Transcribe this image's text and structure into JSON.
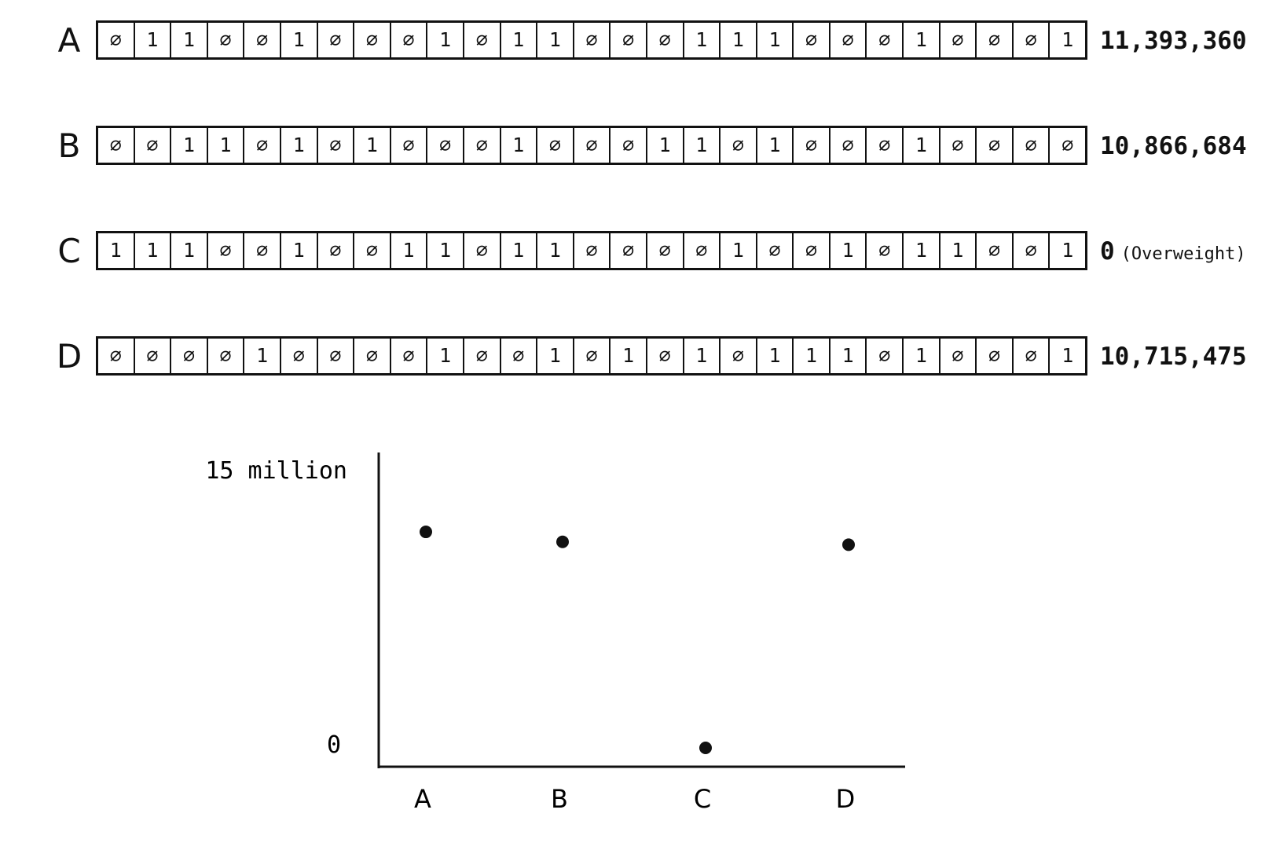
{
  "rows": [
    {
      "label": "A",
      "bits": "011001000101100011100010001",
      "value": "11,393,360",
      "note": ""
    },
    {
      "label": "B",
      "bits": "001101010001000110100010000",
      "value": "10,866,684",
      "note": ""
    },
    {
      "label": "C",
      "bits": "111001001101100001001011001",
      "value": "0",
      "note": "(Overweight)"
    },
    {
      "label": "D",
      "bits": "000010000100101010111010001",
      "value": "10,715,475",
      "note": ""
    }
  ],
  "chart_data": {
    "type": "scatter",
    "categories": [
      "A",
      "B",
      "C",
      "D"
    ],
    "values": [
      11393360,
      10866684,
      0,
      10715475
    ],
    "ytick_labels": [
      "15 million",
      "0"
    ],
    "ylim": [
      0,
      15000000
    ],
    "grid": false
  }
}
